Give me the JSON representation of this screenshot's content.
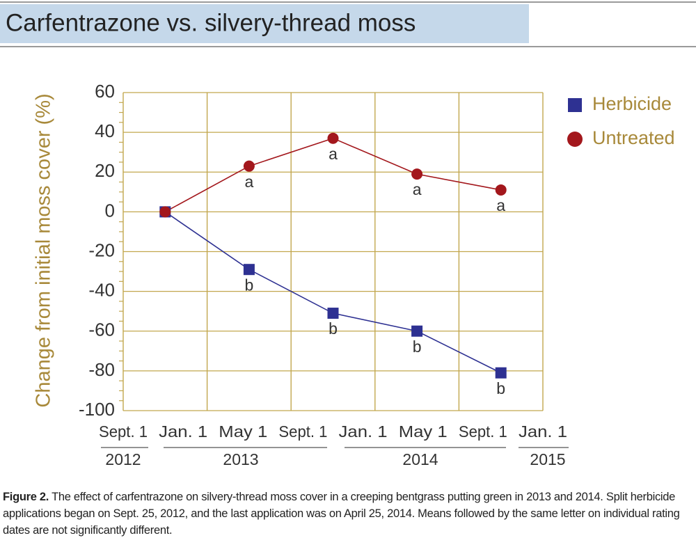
{
  "chart_data": {
    "type": "line",
    "title": "Carfentrazone vs. silvery-thread moss",
    "y_label": "Change from initial moss cover (%)",
    "categories": [
      null,
      null,
      null,
      null,
      null
    ],
    "series": [
      {
        "name": "Herbicide",
        "color": "#2e3192",
        "marker": "square",
        "values": [
          0,
          -29,
          -51,
          -60,
          -81
        ],
        "letters": [
          null,
          "b",
          "b",
          "b",
          "b"
        ]
      },
      {
        "name": "Untreated",
        "color": "#a3171c",
        "marker": "circle",
        "values": [
          0,
          23,
          37,
          19,
          11
        ],
        "letters": [
          null,
          "a",
          "a",
          "a",
          "a"
        ]
      }
    ],
    "ylim": [
      -100,
      60
    ],
    "yticks": [
      -100,
      -80,
      -60,
      -40,
      -20,
      0,
      20,
      40,
      60
    ],
    "grid": true,
    "legend": "right",
    "date_labels": [
      "Sept. 1",
      "Jan. 1",
      "May 1",
      "Sept. 1",
      "Jan. 1",
      "May 1",
      "Sept. 1",
      "Jan. 1"
    ],
    "year_labels": [
      "2012",
      "2013",
      "2014",
      "2015"
    ]
  },
  "figure_caption": {
    "label": "Figure 2.",
    "text": "The effect of carfentrazone on silvery-thread moss cover in a creeping bentgrass putting green in 2013 and 2014. Split herbicide applications began on Sept. 25, 2012, and the last application was on April 25, 2014. Means followed by the same letter on individual rating dates are not significantly different."
  }
}
